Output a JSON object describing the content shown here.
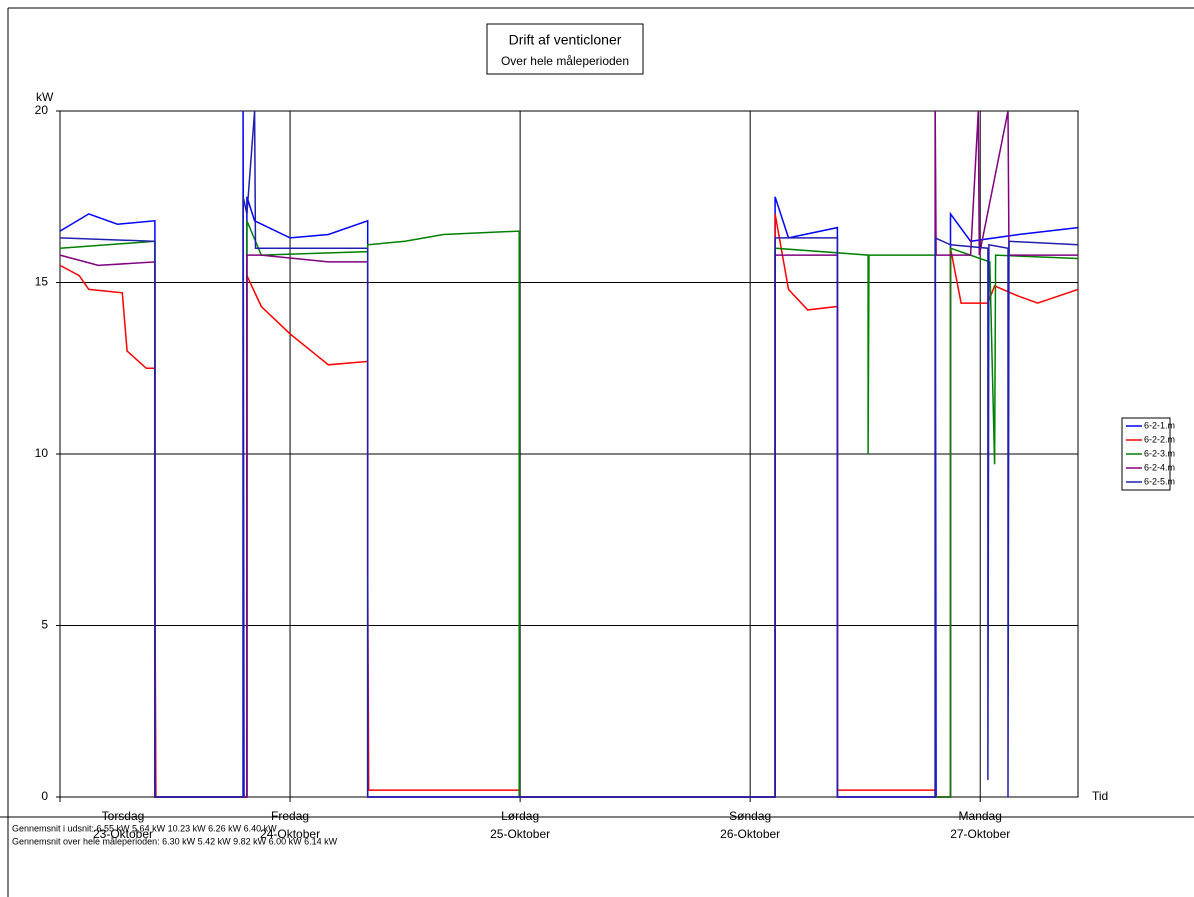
{
  "chart_data": {
    "type": "line",
    "title": "Drift af venticloner",
    "subtitle": "Over hele måleperioden",
    "y_label": "kW",
    "x_label": "Tid",
    "xlim": [
      0,
      106.2
    ],
    "ylim": [
      0,
      20
    ],
    "yticks": [
      0,
      5,
      10,
      15,
      20
    ],
    "xticks": [
      {
        "value": 0,
        "label": "Torsdag"
      },
      {
        "value": 24,
        "label": "Fredag"
      },
      {
        "value": 48,
        "label": "Lørdag"
      },
      {
        "value": 72,
        "label": "Søndag"
      },
      {
        "value": 96,
        "label": "Mandag"
      }
    ],
    "xtick_dates": [
      "23-Oktober",
      "24-Oktober",
      "25-Oktober",
      "26-Oktober",
      "27-Oktober"
    ],
    "grid": true,
    "legend": "right",
    "notes": [
      "Gennemsnit i udsnit: 6.55 kW 5.64 kW 10.23 kW 6.26 kW 6.40 kW",
      "Gennemsnit over hele måleperioden: 6.30 kW 5.42 kW 9.82 kW 6.00 kW 6.14 kW"
    ],
    "series": [
      {
        "name": "6-2-1.m",
        "color": "#0000ff",
        "x": [
          0,
          3,
          6,
          9.9,
          9.9,
          19.1,
          19.1,
          19.2,
          19.5,
          19.5,
          20.3,
          24,
          28,
          32.1,
          32.1,
          74.6,
          74.6,
          76,
          81.1,
          81.1,
          91.3,
          91.3,
          91.4,
          92.9,
          92.9,
          95,
          100,
          106.2
        ],
        "values": [
          16.5,
          17,
          16.7,
          16.8,
          0,
          0,
          20,
          0,
          0,
          17.5,
          16.8,
          16.3,
          16.4,
          16.8,
          0,
          0,
          17.5,
          16.3,
          16.6,
          0,
          0,
          20,
          0,
          0,
          17,
          16.2,
          16.4,
          16.6
        ]
      },
      {
        "name": "6-2-2.m",
        "color": "#ff0000",
        "x": [
          0,
          2,
          3,
          6.5,
          7,
          9,
          9.9,
          9.9,
          10,
          19.5,
          19.5,
          21,
          24,
          28,
          32.1,
          32.1,
          32.2,
          47.9,
          47.9,
          74.6,
          74.6,
          76,
          78,
          81.1,
          81.1,
          91.3,
          91.3,
          92.9,
          92.9,
          94,
          96.8,
          97.5,
          100,
          102,
          106.2
        ],
        "values": [
          15.5,
          15.2,
          14.8,
          14.7,
          13,
          12.5,
          12.5,
          6.5,
          0,
          0,
          15.2,
          14.3,
          13.5,
          12.6,
          12.7,
          6.5,
          0.2,
          0.2,
          0,
          0,
          17,
          14.8,
          14.2,
          14.3,
          0.2,
          0.2,
          0,
          0,
          16,
          14.4,
          14.4,
          14.9,
          14.6,
          14.4,
          14.8
        ]
      },
      {
        "name": "6-2-3.m",
        "color": "#008000",
        "x": [
          0,
          9.9,
          9.9,
          19.5,
          19.5,
          21,
          32.1,
          32.1,
          36,
          40,
          47.9,
          47.9,
          74.6,
          74.6,
          84.3,
          84.3,
          84.4,
          91.3,
          91.3,
          92.9,
          92.9,
          97,
          97.5,
          97.6,
          106.2
        ],
        "values": [
          16,
          16.2,
          0,
          0,
          16.8,
          15.8,
          15.9,
          16.1,
          16.2,
          16.4,
          16.5,
          0,
          0,
          16,
          15.8,
          10,
          15.8,
          15.8,
          0,
          0,
          16,
          15.6,
          9.7,
          15.8,
          15.7
        ]
      },
      {
        "name": "6-2-4.m",
        "color": "#800080",
        "x": [
          0,
          4,
          9.9,
          9.9,
          19.5,
          19.5,
          21,
          28,
          32.1,
          32.1,
          74.6,
          74.6,
          81.1,
          81.1,
          91.3,
          91.3,
          91.4,
          95,
          95.8,
          95.9,
          98.9,
          99,
          106.2
        ],
        "values": [
          15.8,
          15.5,
          15.6,
          0,
          0,
          15.8,
          15.8,
          15.6,
          15.6,
          0,
          0,
          15.8,
          15.8,
          0,
          0,
          20,
          15.8,
          15.8,
          20,
          15.8,
          20,
          15.8,
          15.8
        ]
      },
      {
        "name": "6-2-5.m",
        "color": "#2020b0",
        "x": [
          0,
          9.9,
          9.9,
          19.1,
          19.1,
          19.5,
          20.3,
          20.4,
          32.1,
          32.1,
          74.6,
          74.6,
          81.1,
          81.1,
          91.3,
          91.3,
          92.9,
          96.8,
          96.8,
          96.9,
          98.9,
          98.9,
          99,
          106.2
        ],
        "values": [
          16.3,
          16.2,
          0,
          0,
          17.5,
          17,
          20,
          16,
          16,
          0,
          0,
          16.3,
          16.3,
          0,
          0,
          16.3,
          16.1,
          16,
          0.5,
          16.1,
          16,
          0,
          16.2,
          16.1
        ]
      }
    ]
  }
}
